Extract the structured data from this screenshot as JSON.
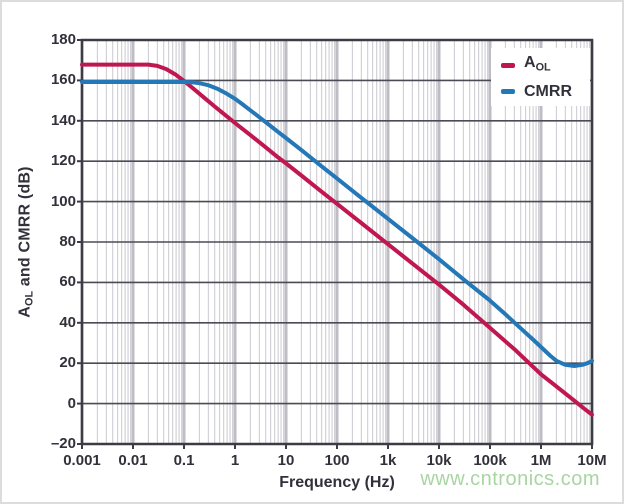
{
  "page": {
    "watermark": "www.cntronics.com",
    "watermark_color": "#a8d5a2",
    "background": "#ffffff"
  },
  "chart_data": {
    "type": "line",
    "title": "",
    "xlabel": "Frequency (Hz)",
    "ylabel": "AOL and CMRR (dB)",
    "ylabel_parts": {
      "main": "A",
      "sub": "OL",
      "rest": " and CMRR (dB)"
    },
    "x_scale": "log",
    "xlim": [
      0.001,
      10000000
    ],
    "ylim": [
      -20,
      180
    ],
    "grid": {
      "minor_vertical_color": "#c9c9d0",
      "major_vertical_color": "#bdbdc6",
      "horizontal_color": "#4b4b55",
      "frame_color": "#3c3c45"
    },
    "x_tick_values": [
      0.001,
      0.01,
      0.1,
      1,
      10,
      100,
      1000,
      10000,
      100000,
      1000000,
      10000000
    ],
    "x_tick_labels": [
      "0.001",
      "0.01",
      "0.1",
      "1",
      "10",
      "100",
      "1k",
      "10k",
      "100k",
      "1M",
      "10M"
    ],
    "y_tick_values": [
      180,
      160,
      140,
      120,
      100,
      80,
      60,
      40,
      20,
      0,
      -20
    ],
    "y_tick_labels": [
      "180",
      "160",
      "140",
      "120",
      "100",
      "80",
      "60",
      "40",
      "20",
      "0",
      "–20"
    ],
    "legend": {
      "position": "top-right",
      "entries": [
        {
          "main": "A",
          "sub": "OL",
          "color": "#c11750"
        },
        {
          "main": "CMRR",
          "sub": "",
          "color": "#2578b7"
        }
      ]
    },
    "series": [
      {
        "name": "AOL",
        "color": "#c11750",
        "points": [
          [
            0.001,
            167.8
          ],
          [
            0.02,
            167.8
          ],
          [
            0.03,
            167.2
          ],
          [
            0.045,
            165.6
          ],
          [
            0.07,
            162.7
          ],
          [
            0.1,
            159.7
          ],
          [
            0.15,
            156.1
          ],
          [
            0.25,
            151.4
          ],
          [
            0.4,
            147.1
          ],
          [
            0.7,
            142.1
          ],
          [
            1,
            138.9
          ],
          [
            2,
            132.9
          ],
          [
            4,
            126.9
          ],
          [
            7,
            121.9
          ],
          [
            10,
            118.9
          ],
          [
            20,
            112.9
          ],
          [
            50,
            104.9
          ],
          [
            100,
            98.9
          ],
          [
            300,
            89.4
          ],
          [
            1000,
            78.9
          ],
          [
            3000,
            69.4
          ],
          [
            10000,
            58.9
          ],
          [
            30000,
            49
          ],
          [
            100000,
            37.5
          ],
          [
            300000,
            27
          ],
          [
            1000000,
            14.5
          ],
          [
            2000000,
            8.5
          ],
          [
            4000000,
            2.5
          ],
          [
            7000000,
            -2.5
          ],
          [
            10000000,
            -5.5
          ]
        ]
      },
      {
        "name": "CMRR",
        "color": "#2578b7",
        "points": [
          [
            0.001,
            159.2
          ],
          [
            0.1,
            159.2
          ],
          [
            0.15,
            159.0
          ],
          [
            0.2,
            158.6
          ],
          [
            0.3,
            157.6
          ],
          [
            0.45,
            155.9
          ],
          [
            0.7,
            153.3
          ],
          [
            1,
            150.9
          ],
          [
            1.5,
            147.6
          ],
          [
            2.5,
            143.3
          ],
          [
            4,
            139.3
          ],
          [
            7,
            134.5
          ],
          [
            10,
            131.5
          ],
          [
            20,
            125.5
          ],
          [
            50,
            117.5
          ],
          [
            100,
            111.5
          ],
          [
            300,
            101.9
          ],
          [
            1000,
            91.5
          ],
          [
            3000,
            82
          ],
          [
            10000,
            71.5
          ],
          [
            30000,
            61.6
          ],
          [
            100000,
            51
          ],
          [
            200000,
            44.2
          ],
          [
            400000,
            37.3
          ],
          [
            700000,
            31.7
          ],
          [
            1000000,
            28
          ],
          [
            1500000,
            23.8
          ],
          [
            2000000,
            21.2
          ],
          [
            3000000,
            19.2
          ],
          [
            4500000,
            18.6
          ],
          [
            6500000,
            19.2
          ],
          [
            8500000,
            20.2
          ],
          [
            10000000,
            21.2
          ]
        ]
      }
    ]
  }
}
